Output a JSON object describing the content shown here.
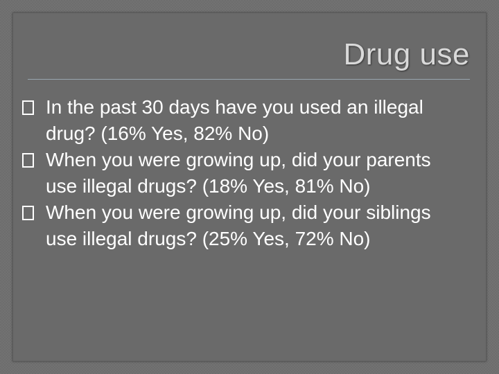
{
  "slide": {
    "title": "Drug use",
    "bullets": [
      {
        "text": "In the past 30 days have you used an illegal drug? (16% Yes, 82% No)"
      },
      {
        "text": "When you were growing up, did your parents use illegal drugs? (18% Yes, 81% No)"
      },
      {
        "text": "When you were growing up, did your siblings use illegal drugs? (25% Yes, 72% No)"
      }
    ],
    "bullet_icon": "square-bullet-icon"
  },
  "colors": {
    "background": "#6d6d6d",
    "title": "#d9d9d9",
    "body_text": "#ffffff",
    "rule": "#9aa6b0"
  }
}
